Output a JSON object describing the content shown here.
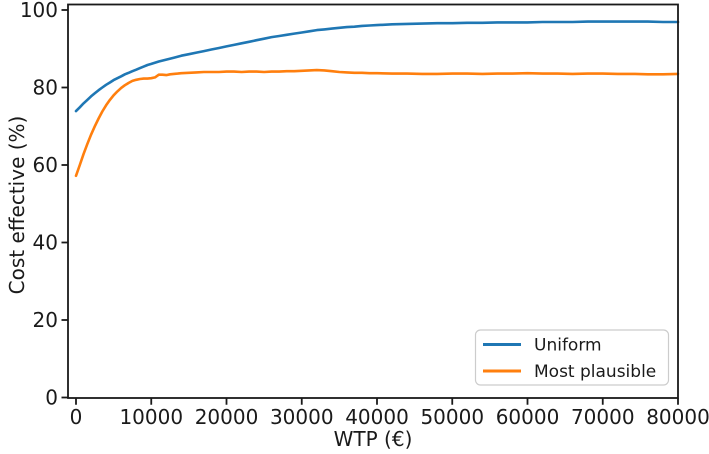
{
  "chart_data": {
    "type": "line",
    "title": "",
    "xlabel": "WTP (€)",
    "ylabel": "Cost effective (%)",
    "xlim": [
      0,
      80000
    ],
    "ylim": [
      0,
      100
    ],
    "x_ticks": [
      0,
      10000,
      20000,
      30000,
      40000,
      50000,
      60000,
      70000,
      80000
    ],
    "y_ticks": [
      0,
      20,
      40,
      60,
      80,
      100
    ],
    "grid": false,
    "legend_position": "lower right",
    "axis_color": "#1a1a1a",
    "series": [
      {
        "name": "Uniform",
        "color": "#1f77b4",
        "points": [
          [
            0,
            73.9
          ],
          [
            500,
            74.9
          ],
          [
            1000,
            75.9
          ],
          [
            1500,
            76.8
          ],
          [
            2000,
            77.7
          ],
          [
            2500,
            78.5
          ],
          [
            3000,
            79.3
          ],
          [
            3500,
            80.0
          ],
          [
            4000,
            80.7
          ],
          [
            4500,
            81.3
          ],
          [
            5000,
            81.9
          ],
          [
            5500,
            82.4
          ],
          [
            6000,
            82.9
          ],
          [
            6500,
            83.4
          ],
          [
            7000,
            83.8
          ],
          [
            7500,
            84.2
          ],
          [
            8000,
            84.6
          ],
          [
            8500,
            85.0
          ],
          [
            9000,
            85.4
          ],
          [
            9500,
            85.8
          ],
          [
            10000,
            86.1
          ],
          [
            11000,
            86.7
          ],
          [
            12000,
            87.2
          ],
          [
            13000,
            87.7
          ],
          [
            14000,
            88.2
          ],
          [
            15000,
            88.6
          ],
          [
            16000,
            89.0
          ],
          [
            17000,
            89.4
          ],
          [
            18000,
            89.8
          ],
          [
            19000,
            90.2
          ],
          [
            20000,
            90.6
          ],
          [
            21000,
            91.0
          ],
          [
            22000,
            91.4
          ],
          [
            23000,
            91.8
          ],
          [
            24000,
            92.2
          ],
          [
            25000,
            92.6
          ],
          [
            26000,
            93.0
          ],
          [
            27000,
            93.3
          ],
          [
            28000,
            93.6
          ],
          [
            29000,
            93.9
          ],
          [
            30000,
            94.2
          ],
          [
            31000,
            94.5
          ],
          [
            32000,
            94.8
          ],
          [
            33000,
            95.0
          ],
          [
            34000,
            95.2
          ],
          [
            35000,
            95.4
          ],
          [
            36000,
            95.6
          ],
          [
            37000,
            95.7
          ],
          [
            38000,
            95.9
          ],
          [
            39000,
            96.0
          ],
          [
            40000,
            96.1
          ],
          [
            42000,
            96.3
          ],
          [
            44000,
            96.4
          ],
          [
            46000,
            96.5
          ],
          [
            48000,
            96.6
          ],
          [
            50000,
            96.6
          ],
          [
            52000,
            96.7
          ],
          [
            54000,
            96.7
          ],
          [
            56000,
            96.8
          ],
          [
            58000,
            96.8
          ],
          [
            60000,
            96.8
          ],
          [
            62000,
            96.9
          ],
          [
            64000,
            96.9
          ],
          [
            66000,
            96.9
          ],
          [
            68000,
            97.0
          ],
          [
            70000,
            97.0
          ],
          [
            72000,
            97.0
          ],
          [
            74000,
            97.0
          ],
          [
            76000,
            97.0
          ],
          [
            78000,
            96.9
          ],
          [
            80000,
            96.9
          ]
        ]
      },
      {
        "name": "Most plausible",
        "color": "#ff7f0e",
        "points": [
          [
            0,
            57.2
          ],
          [
            500,
            60.0
          ],
          [
            1000,
            62.8
          ],
          [
            1500,
            65.4
          ],
          [
            2000,
            67.8
          ],
          [
            2500,
            70.0
          ],
          [
            3000,
            72.0
          ],
          [
            3500,
            73.8
          ],
          [
            4000,
            75.4
          ],
          [
            4500,
            76.8
          ],
          [
            5000,
            78.0
          ],
          [
            5500,
            79.0
          ],
          [
            6000,
            79.9
          ],
          [
            6500,
            80.6
          ],
          [
            7000,
            81.2
          ],
          [
            7500,
            81.7
          ],
          [
            8000,
            82.0
          ],
          [
            8500,
            82.2
          ],
          [
            9000,
            82.3
          ],
          [
            9500,
            82.3
          ],
          [
            10000,
            82.4
          ],
          [
            10500,
            82.6
          ],
          [
            11000,
            83.3
          ],
          [
            11500,
            83.3
          ],
          [
            12000,
            83.2
          ],
          [
            12500,
            83.4
          ],
          [
            13000,
            83.5
          ],
          [
            13500,
            83.6
          ],
          [
            14000,
            83.7
          ],
          [
            15000,
            83.8
          ],
          [
            16000,
            83.9
          ],
          [
            17000,
            84.0
          ],
          [
            18000,
            84.0
          ],
          [
            19000,
            84.0
          ],
          [
            20000,
            84.1
          ],
          [
            21000,
            84.1
          ],
          [
            22000,
            84.0
          ],
          [
            23000,
            84.1
          ],
          [
            24000,
            84.1
          ],
          [
            25000,
            84.0
          ],
          [
            26000,
            84.1
          ],
          [
            27000,
            84.1
          ],
          [
            28000,
            84.2
          ],
          [
            29000,
            84.2
          ],
          [
            30000,
            84.3
          ],
          [
            31000,
            84.4
          ],
          [
            32000,
            84.5
          ],
          [
            33000,
            84.4
          ],
          [
            34000,
            84.2
          ],
          [
            35000,
            84.0
          ],
          [
            36000,
            83.9
          ],
          [
            37000,
            83.8
          ],
          [
            38000,
            83.8
          ],
          [
            39000,
            83.7
          ],
          [
            40000,
            83.7
          ],
          [
            42000,
            83.6
          ],
          [
            44000,
            83.6
          ],
          [
            46000,
            83.5
          ],
          [
            48000,
            83.5
          ],
          [
            50000,
            83.6
          ],
          [
            52000,
            83.6
          ],
          [
            54000,
            83.5
          ],
          [
            56000,
            83.6
          ],
          [
            58000,
            83.6
          ],
          [
            60000,
            83.7
          ],
          [
            62000,
            83.6
          ],
          [
            64000,
            83.6
          ],
          [
            66000,
            83.5
          ],
          [
            68000,
            83.6
          ],
          [
            70000,
            83.6
          ],
          [
            72000,
            83.5
          ],
          [
            74000,
            83.5
          ],
          [
            76000,
            83.4
          ],
          [
            78000,
            83.4
          ],
          [
            80000,
            83.5
          ]
        ]
      }
    ]
  }
}
